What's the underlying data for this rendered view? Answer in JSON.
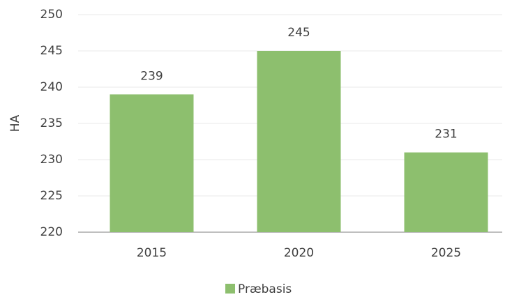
{
  "chart_data": {
    "type": "bar",
    "y_label": "HA",
    "categories": [
      "2015",
      "2020",
      "2025"
    ],
    "series": [
      {
        "name": "Præbasis",
        "color": "#8dbf6e",
        "values": [
          239,
          245,
          231
        ]
      }
    ],
    "ylim": [
      220,
      250
    ],
    "yticks": [
      220,
      225,
      230,
      235,
      240,
      245,
      250
    ],
    "grid": true,
    "legend": "bottom"
  }
}
